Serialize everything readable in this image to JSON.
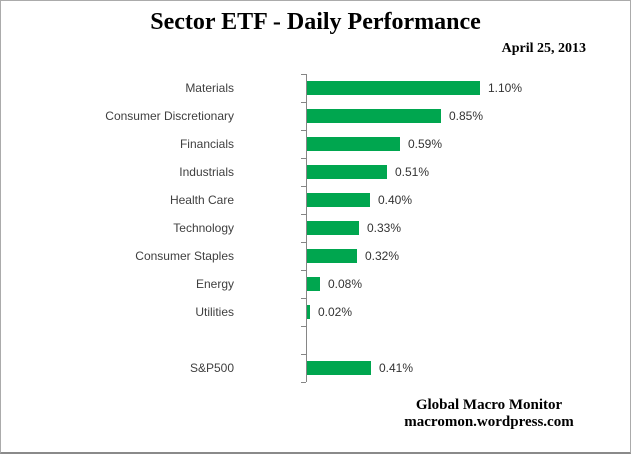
{
  "chart_data": {
    "type": "bar",
    "orientation": "horizontal",
    "title": "Sector ETF - Daily Performance",
    "date_label": "April 25, 2013",
    "categories": [
      "Materials",
      "Consumer Discretionary",
      "Financials",
      "Industrials",
      "Health Care",
      "Technology",
      "Consumer Staples",
      "Energy",
      "Utilities",
      "",
      "S&P500"
    ],
    "values": [
      1.1,
      0.85,
      0.59,
      0.51,
      0.4,
      0.33,
      0.32,
      0.08,
      0.02,
      null,
      0.41
    ],
    "value_labels": [
      "1.10%",
      "0.85%",
      "0.59%",
      "0.51%",
      "0.40%",
      "0.33%",
      "0.32%",
      "0.08%",
      "0.02%",
      "",
      "0.41%"
    ],
    "xlabel": "",
    "ylabel": "",
    "xlim": [
      0,
      1.2
    ],
    "grid": false,
    "legend": false,
    "bar_color": "#00a64f",
    "axis_color": "#868686"
  },
  "footer": {
    "line1": "Global Macro Monitor",
    "line2": "macromon.wordpress.com"
  }
}
